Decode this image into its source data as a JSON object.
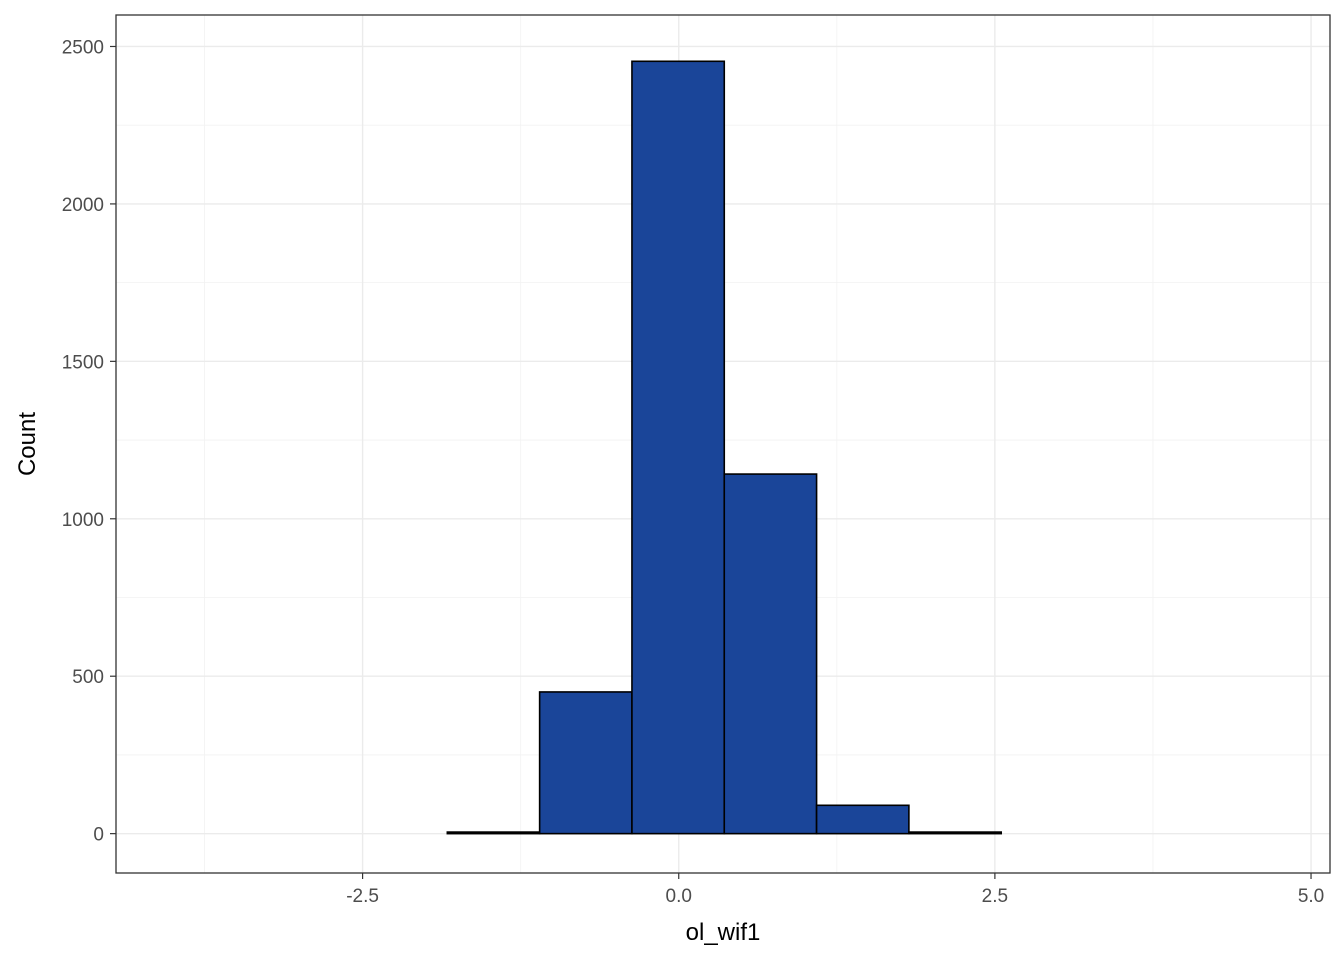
{
  "chart_data": {
    "type": "bar",
    "subtype": "histogram",
    "xlabel": "ol_wif1",
    "ylabel": "Count",
    "xlim": [
      -4.45,
      5.15
    ],
    "ylim": [
      -125,
      2600
    ],
    "x_ticks": [
      -2.5,
      0.0,
      2.5,
      5.0
    ],
    "x_tick_labels": [
      "-2.5",
      "0.0",
      "2.5",
      "5.0"
    ],
    "y_ticks": [
      0,
      500,
      1000,
      1500,
      2000,
      2500
    ],
    "y_tick_labels": [
      "0",
      "500",
      "1000",
      "1500",
      "2000",
      "2500"
    ],
    "grid": true,
    "theme": "bw",
    "bar_fill": "#1a4599",
    "bar_outline": "#000000",
    "bins": [
      {
        "x0": -4.02,
        "x1": -3.29,
        "count": 0
      },
      {
        "x0": -3.29,
        "x1": -2.56,
        "count": 0
      },
      {
        "x0": -2.56,
        "x1": -1.83,
        "count": 0
      },
      {
        "x0": -1.83,
        "x1": -1.1,
        "count": 5
      },
      {
        "x0": -1.1,
        "x1": -0.37,
        "count": 450
      },
      {
        "x0": -0.37,
        "x1": 0.36,
        "count": 2453
      },
      {
        "x0": 0.36,
        "x1": 1.09,
        "count": 1142
      },
      {
        "x0": 1.09,
        "x1": 1.82,
        "count": 90
      },
      {
        "x0": 1.82,
        "x1": 2.55,
        "count": 5
      },
      {
        "x0": 2.55,
        "x1": 3.28,
        "count": 0
      },
      {
        "x0": 3.28,
        "x1": 4.01,
        "count": 0
      },
      {
        "x0": 4.01,
        "x1": 4.74,
        "count": 0
      }
    ]
  }
}
